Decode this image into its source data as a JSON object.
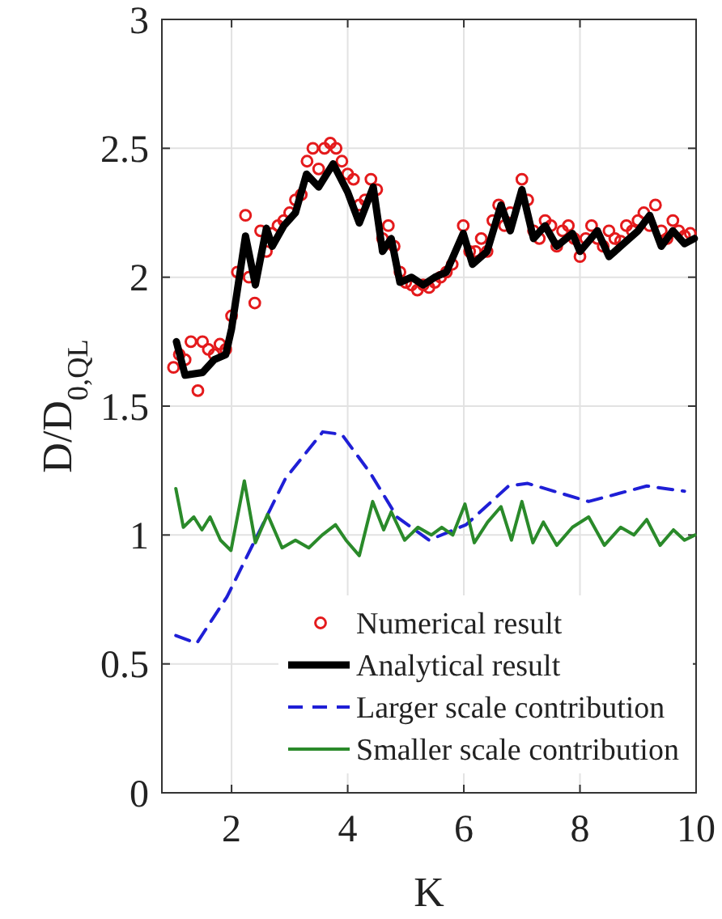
{
  "chart_data": {
    "type": "line",
    "xlabel": "K",
    "ylabel": "D/D$_{0,QL}$",
    "xlim": [
      0.8,
      10
    ],
    "xticks": [
      2,
      4,
      6,
      8,
      10
    ],
    "ylim": [
      0,
      3
    ],
    "yticks": [
      0,
      0.5,
      1,
      1.5,
      2,
      2.5,
      3
    ],
    "grid": true,
    "legend": "bottom",
    "series": [
      {
        "name": "Numerical result",
        "type": "scatter",
        "marker": "circle",
        "color": "#e41a1c",
        "x": [
          1.0,
          1.1,
          1.2,
          1.3,
          1.42,
          1.5,
          1.6,
          1.7,
          1.8,
          1.9,
          2.0,
          2.1,
          2.24,
          2.3,
          2.4,
          2.5,
          2.6,
          2.7,
          2.8,
          2.9,
          3.0,
          3.1,
          3.2,
          3.3,
          3.4,
          3.5,
          3.6,
          3.7,
          3.8,
          3.9,
          4.0,
          4.1,
          4.2,
          4.3,
          4.4,
          4.5,
          4.6,
          4.7,
          4.8,
          4.9,
          5.0,
          5.1,
          5.2,
          5.3,
          5.4,
          5.5,
          5.6,
          5.7,
          5.8,
          5.99,
          6.1,
          6.2,
          6.3,
          6.4,
          6.5,
          6.6,
          6.7,
          6.8,
          7.0,
          7.1,
          7.2,
          7.3,
          7.4,
          7.5,
          7.6,
          7.7,
          7.8,
          7.9,
          8.0,
          8.1,
          8.2,
          8.3,
          8.4,
          8.5,
          8.6,
          8.7,
          8.8,
          8.9,
          9.0,
          9.1,
          9.2,
          9.3,
          9.4,
          9.5,
          9.6,
          9.7,
          9.8,
          9.9
        ],
        "values": [
          1.65,
          1.7,
          1.68,
          1.75,
          1.56,
          1.75,
          1.72,
          1.7,
          1.74,
          1.72,
          1.85,
          2.02,
          2.24,
          2.0,
          1.9,
          2.18,
          2.1,
          2.17,
          2.2,
          2.22,
          2.25,
          2.3,
          2.32,
          2.45,
          2.5,
          2.42,
          2.5,
          2.52,
          2.5,
          2.45,
          2.4,
          2.38,
          2.28,
          2.3,
          2.38,
          2.34,
          2.15,
          2.2,
          2.12,
          2.02,
          1.98,
          1.97,
          1.95,
          1.97,
          1.96,
          1.98,
          2.0,
          2.02,
          2.05,
          2.2,
          2.1,
          2.1,
          2.15,
          2.1,
          2.22,
          2.28,
          2.2,
          2.25,
          2.38,
          2.3,
          2.18,
          2.15,
          2.22,
          2.2,
          2.12,
          2.18,
          2.2,
          2.15,
          2.08,
          2.15,
          2.2,
          2.15,
          2.12,
          2.18,
          2.15,
          2.14,
          2.2,
          2.18,
          2.22,
          2.25,
          2.2,
          2.28,
          2.18,
          2.15,
          2.22,
          2.18,
          2.16,
          2.17
        ]
      },
      {
        "name": "Analytical result",
        "line_style": "solid",
        "color": "#000000",
        "x": [
          1.05,
          1.2,
          1.5,
          1.7,
          1.9,
          2.0,
          2.1,
          2.24,
          2.41,
          2.6,
          2.7,
          2.9,
          3.1,
          3.29,
          3.5,
          3.75,
          4.0,
          4.2,
          4.44,
          4.6,
          4.75,
          4.9,
          5.1,
          5.3,
          5.5,
          5.7,
          5.99,
          6.15,
          6.4,
          6.64,
          6.8,
          7.0,
          7.2,
          7.4,
          7.6,
          7.87,
          8.0,
          8.3,
          8.5,
          8.7,
          9.0,
          9.2,
          9.4,
          9.6,
          9.8,
          9.97
        ],
        "values": [
          1.75,
          1.62,
          1.63,
          1.68,
          1.7,
          1.8,
          1.95,
          2.16,
          1.97,
          2.19,
          2.12,
          2.2,
          2.25,
          2.4,
          2.35,
          2.44,
          2.33,
          2.21,
          2.35,
          2.1,
          2.15,
          1.98,
          2.0,
          1.97,
          2.0,
          2.02,
          2.17,
          2.05,
          2.1,
          2.28,
          2.18,
          2.34,
          2.15,
          2.2,
          2.12,
          2.17,
          2.1,
          2.18,
          2.08,
          2.12,
          2.18,
          2.24,
          2.12,
          2.18,
          2.13,
          2.15
        ]
      },
      {
        "name": "Larger scale contribution",
        "line_style": "dashed",
        "color": "#1f1fd6",
        "x": [
          1.04,
          1.4,
          1.92,
          2.47,
          2.93,
          3.57,
          3.9,
          4.39,
          4.85,
          5.4,
          6.04,
          6.77,
          7.1,
          8.15,
          9.15,
          9.8
        ],
        "values": [
          0.61,
          0.58,
          0.76,
          1.01,
          1.22,
          1.4,
          1.39,
          1.24,
          1.07,
          0.98,
          1.04,
          1.19,
          1.2,
          1.13,
          1.19,
          1.17
        ]
      },
      {
        "name": "Smaller scale contribution",
        "line_style": "solid",
        "color": "#2a8a2a",
        "x": [
          1.04,
          1.17,
          1.35,
          1.49,
          1.63,
          1.81,
          1.99,
          2.22,
          2.41,
          2.62,
          2.87,
          3.1,
          3.33,
          3.56,
          3.79,
          3.97,
          4.2,
          4.43,
          4.62,
          4.75,
          4.98,
          5.21,
          5.44,
          5.62,
          5.81,
          6.02,
          6.18,
          6.41,
          6.64,
          6.82,
          7.0,
          7.19,
          7.37,
          7.6,
          7.87,
          8.15,
          8.42,
          8.7,
          8.93,
          9.15,
          9.38,
          9.61,
          9.8,
          9.98
        ],
        "values": [
          1.18,
          1.03,
          1.07,
          1.02,
          1.07,
          0.98,
          0.94,
          1.21,
          0.97,
          1.08,
          0.95,
          0.98,
          0.95,
          1.0,
          1.04,
          0.98,
          0.92,
          1.13,
          1.02,
          1.09,
          0.98,
          1.03,
          1.0,
          1.03,
          1.0,
          1.12,
          0.97,
          1.05,
          1.11,
          0.98,
          1.13,
          0.97,
          1.05,
          0.96,
          1.03,
          1.07,
          0.96,
          1.03,
          1.0,
          1.06,
          0.96,
          1.02,
          0.98,
          1.0
        ]
      }
    ]
  }
}
